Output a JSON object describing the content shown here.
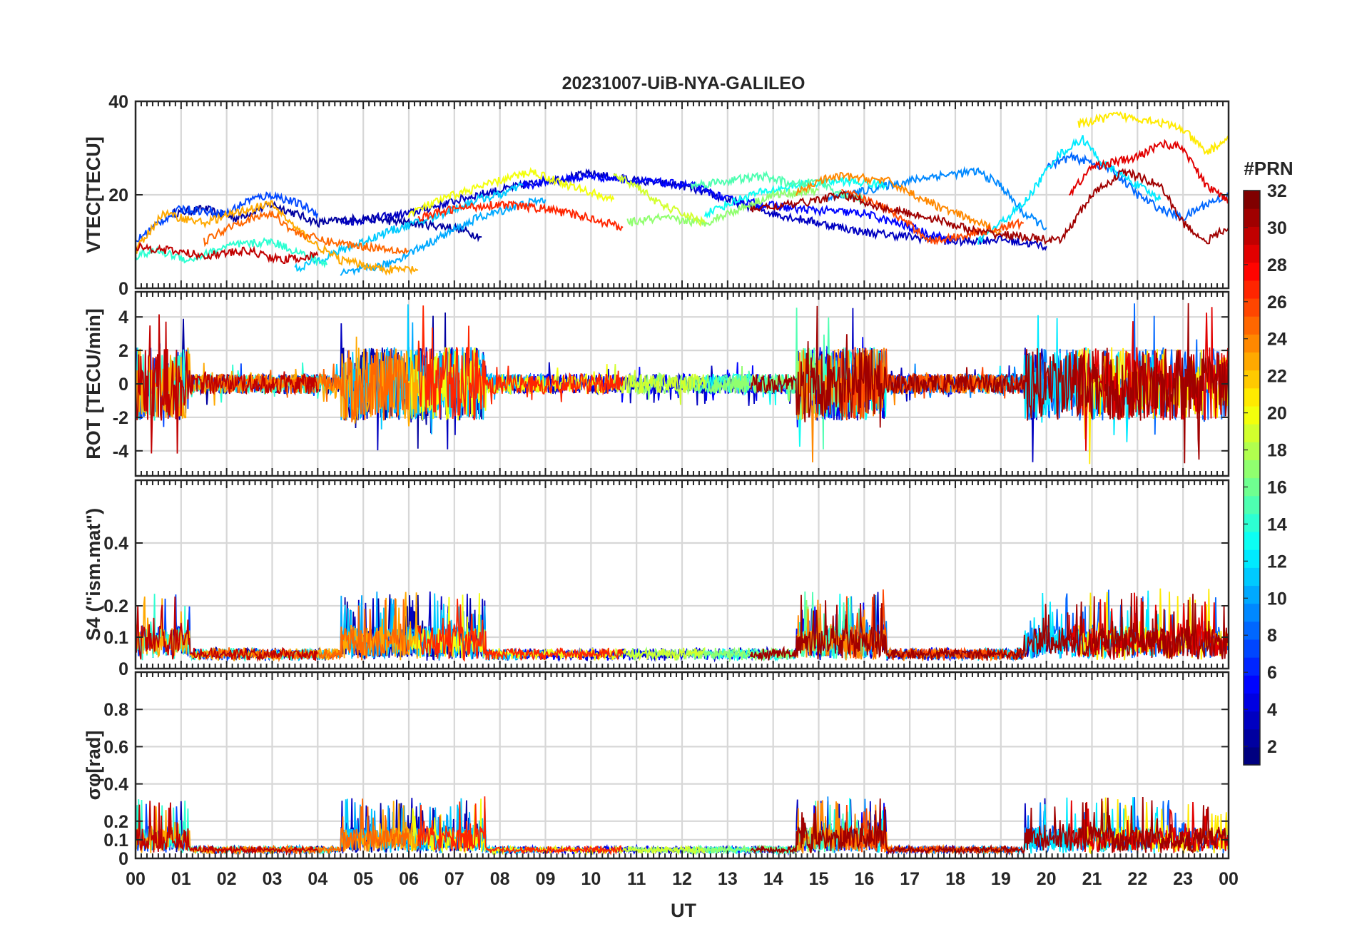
{
  "chart_data": {
    "type": "line",
    "title": "20231007-UiB-NYA-GALILEO",
    "xlabel": "UT",
    "x_ticks": [
      "00",
      "01",
      "02",
      "03",
      "04",
      "05",
      "06",
      "07",
      "08",
      "09",
      "10",
      "11",
      "12",
      "13",
      "14",
      "15",
      "16",
      "17",
      "18",
      "19",
      "20",
      "21",
      "22",
      "23",
      "00"
    ],
    "xlim": [
      0,
      24
    ],
    "panels": [
      {
        "id": "vtec",
        "ylabel": "VTEC[TECU]",
        "ylim": [
          0,
          40
        ],
        "yticks": [
          0,
          20,
          40
        ],
        "ytick_labels": [
          "0",
          "20",
          "40"
        ],
        "series": [
          {
            "prn": 2,
            "points": [
              [
                0.8,
                16
              ],
              [
                1.5,
                17
              ],
              [
                2.2,
                15
              ],
              [
                3.0,
                18
              ],
              [
                4.0,
                14
              ],
              [
                5.0,
                15
              ],
              [
                6.0,
                14
              ],
              [
                7.0,
                13
              ],
              [
                7.6,
                11
              ]
            ]
          },
          {
            "prn": 3,
            "points": [
              [
                4.5,
                14
              ],
              [
                6,
                16
              ],
              [
                7.5,
                20
              ],
              [
                9,
                23
              ],
              [
                10,
                24.5
              ],
              [
                11,
                23
              ],
              [
                12,
                22
              ],
              [
                13,
                19
              ],
              [
                14,
                16
              ],
              [
                15,
                14
              ],
              [
                16,
                12
              ],
              [
                17,
                11
              ],
              [
                18,
                10
              ],
              [
                19,
                10.5
              ],
              [
                20,
                9
              ]
            ]
          },
          {
            "prn": 5,
            "points": [
              [
                8.5,
                22
              ],
              [
                10,
                24
              ],
              [
                11,
                23
              ],
              [
                12.2,
                22
              ],
              [
                13,
                19
              ],
              [
                14.5,
                17
              ],
              [
                16,
                16
              ],
              [
                17,
                13
              ],
              [
                18,
                10
              ]
            ]
          },
          {
            "prn": 7,
            "points": [
              [
                0,
                10
              ],
              [
                0.5,
                14
              ],
              [
                1,
                17
              ],
              [
                2,
                16
              ],
              [
                2.5,
                19
              ],
              [
                3,
                20
              ],
              [
                3.6,
                18
              ],
              [
                4,
                16
              ]
            ]
          },
          {
            "prn": 8,
            "points": [
              [
                20,
                26
              ],
              [
                20.5,
                28
              ],
              [
                21,
                27
              ],
              [
                21.5,
                25
              ],
              [
                22,
                20
              ],
              [
                22.5,
                17
              ],
              [
                23,
                15
              ],
              [
                23.5,
                18
              ],
              [
                24,
                20
              ]
            ]
          },
          {
            "prn": 9,
            "points": [
              [
                15.2,
                19
              ],
              [
                16.5,
                22
              ],
              [
                17.5,
                24
              ],
              [
                18.5,
                25
              ],
              [
                19,
                22
              ],
              [
                19.5,
                16
              ],
              [
                20,
                13
              ]
            ]
          },
          {
            "prn": 10,
            "points": [
              [
                4.5,
                3
              ],
              [
                5.5,
                5
              ],
              [
                6.5,
                10
              ],
              [
                7.5,
                15
              ],
              [
                8.5,
                18
              ],
              [
                9,
                19
              ]
            ]
          },
          {
            "prn": 11,
            "points": [
              [
                3.5,
                4
              ],
              [
                4.5,
                8
              ],
              [
                5.5,
                12
              ],
              [
                6.5,
                15
              ],
              [
                7.5,
                19
              ],
              [
                8,
                20
              ],
              [
                8.5,
                22
              ]
            ]
          },
          {
            "prn": 12,
            "points": [
              [
                18.5,
                10
              ],
              [
                19.5,
                18
              ],
              [
                20.2,
                28
              ],
              [
                20.8,
                32
              ],
              [
                21.2,
                27
              ],
              [
                22,
                22
              ],
              [
                22.5,
                19
              ]
            ]
          },
          {
            "prn": 13,
            "points": [
              [
                12.5,
                16
              ],
              [
                13.5,
                20
              ],
              [
                14.5,
                22
              ],
              [
                15.5,
                23
              ],
              [
                16.5,
                22
              ]
            ]
          },
          {
            "prn": 14,
            "points": [
              [
                0,
                7
              ],
              [
                0.5,
                8
              ],
              [
                1.2,
                6
              ],
              [
                2,
                9
              ],
              [
                3,
                10
              ],
              [
                3.5,
                8
              ],
              [
                4.2,
                5
              ]
            ]
          },
          {
            "prn": 15,
            "points": [
              [
                12.2,
                22
              ],
              [
                13.0,
                23
              ],
              [
                13.8,
                24
              ],
              [
                14.5,
                22
              ],
              [
                15,
                23
              ],
              [
                15.5,
                20
              ],
              [
                16,
                19
              ]
            ]
          },
          {
            "prn": 17,
            "points": [
              [
                10.8,
                14
              ],
              [
                11.5,
                15
              ],
              [
                12.5,
                14
              ],
              [
                13,
                16
              ],
              [
                14,
                20
              ],
              [
                15,
                21
              ]
            ]
          },
          {
            "prn": 19,
            "points": [
              [
                10.5,
                24
              ],
              [
                11,
                22
              ],
              [
                11.5,
                18
              ],
              [
                12,
                16
              ],
              [
                12.5,
                14
              ]
            ]
          },
          {
            "prn": 20,
            "points": [
              [
                6,
                16
              ],
              [
                7,
                20
              ],
              [
                8,
                23
              ],
              [
                8.7,
                25
              ],
              [
                9.5,
                22
              ],
              [
                10.5,
                19
              ]
            ]
          },
          {
            "prn": 21,
            "points": [
              [
                20.7,
                35
              ],
              [
                21.5,
                37
              ],
              [
                22.3,
                36
              ],
              [
                23,
                34
              ],
              [
                23.5,
                29
              ],
              [
                24,
                32
              ]
            ]
          },
          {
            "prn": 23,
            "points": [
              [
                0,
                8
              ],
              [
                0.6,
                16
              ],
              [
                1.5,
                14
              ],
              [
                2.5,
                17
              ],
              [
                3.0,
                18
              ],
              [
                3.5,
                13
              ],
              [
                4,
                9
              ],
              [
                4.5,
                6
              ],
              [
                5.5,
                4
              ],
              [
                6.2,
                4
              ]
            ]
          },
          {
            "prn": 24,
            "points": [
              [
                14.5,
                20
              ],
              [
                15,
                23
              ],
              [
                15.5,
                24
              ],
              [
                16.5,
                23
              ],
              [
                17.5,
                18
              ],
              [
                18.5,
                14
              ],
              [
                19,
                12
              ]
            ]
          },
          {
            "prn": 25,
            "points": [
              [
                1.5,
                10
              ],
              [
                2.2,
                14
              ],
              [
                3,
                16
              ],
              [
                3.5,
                12
              ],
              [
                4.2,
                10
              ],
              [
                5,
                9
              ],
              [
                6,
                8
              ]
            ]
          },
          {
            "prn": 26,
            "points": [
              [
                15.5,
                21
              ],
              [
                16.5,
                17
              ],
              [
                17.5,
                10
              ],
              [
                18.5,
                12
              ],
              [
                19.5,
                14
              ]
            ]
          },
          {
            "prn": 27,
            "points": [
              [
                6.2,
                15
              ],
              [
                7,
                17
              ],
              [
                8,
                18
              ],
              [
                9,
                17
              ],
              [
                10,
                15
              ],
              [
                10.7,
                13
              ]
            ]
          },
          {
            "prn": 29,
            "points": [
              [
                20.5,
                20
              ],
              [
                21,
                26
              ],
              [
                22,
                28
              ],
              [
                22.5,
                31
              ],
              [
                23,
                30
              ],
              [
                23.5,
                22
              ],
              [
                24,
                19
              ]
            ]
          },
          {
            "prn": 30,
            "points": [
              [
                0,
                9
              ],
              [
                0.8,
                8
              ],
              [
                1.5,
                7
              ],
              [
                2.5,
                8
              ],
              [
                3.2,
                6
              ],
              [
                4,
                7
              ]
            ]
          },
          {
            "prn": 31,
            "points": [
              [
                13.5,
                17
              ],
              [
                14.5,
                18
              ],
              [
                15.5,
                20
              ],
              [
                16.5,
                17
              ],
              [
                17.5,
                15
              ],
              [
                18.5,
                12
              ],
              [
                19.5,
                11
              ],
              [
                20.3,
                10
              ],
              [
                21,
                20
              ],
              [
                21.7,
                25
              ],
              [
                22.5,
                22
              ],
              [
                23,
                14
              ],
              [
                23.5,
                10
              ],
              [
                24,
                13
              ]
            ]
          }
        ]
      },
      {
        "id": "rot",
        "ylabel": "ROT [TECU/min]",
        "ylim": [
          -5.5,
          5.5
        ],
        "yticks": [
          -4,
          -2,
          0,
          2,
          4
        ],
        "ytick_labels": [
          "-4",
          "-2",
          "0",
          "2",
          "4"
        ],
        "quiet_amp": 0.6,
        "disturbed_amp": 2.2
      },
      {
        "id": "s4",
        "ylabel": "S4 (\"ism.mat\")",
        "ylim": [
          0,
          0.6
        ],
        "yticks": [
          0,
          0.1,
          0.2,
          0.4
        ],
        "ytick_labels": [
          "0",
          "0.1",
          "0.2",
          "0.4"
        ],
        "baseline": 0.04,
        "peak": 0.25
      },
      {
        "id": "sigphi",
        "ylabel": "σφ[rad]",
        "ylim": [
          0,
          1
        ],
        "yticks": [
          0,
          0.1,
          0.2,
          0.4,
          0.6,
          0.8
        ],
        "ytick_labels": [
          "0",
          "0.1",
          "0.2",
          "0.4",
          "0.6",
          "0.8"
        ],
        "baseline": 0.04,
        "peak": 0.33
      }
    ],
    "colorbar": {
      "label": "#PRN",
      "min": 1,
      "max": 32,
      "ticks": [
        "2",
        "4",
        "6",
        "8",
        "10",
        "12",
        "14",
        "16",
        "18",
        "20",
        "22",
        "24",
        "26",
        "28",
        "30",
        "32"
      ]
    }
  }
}
